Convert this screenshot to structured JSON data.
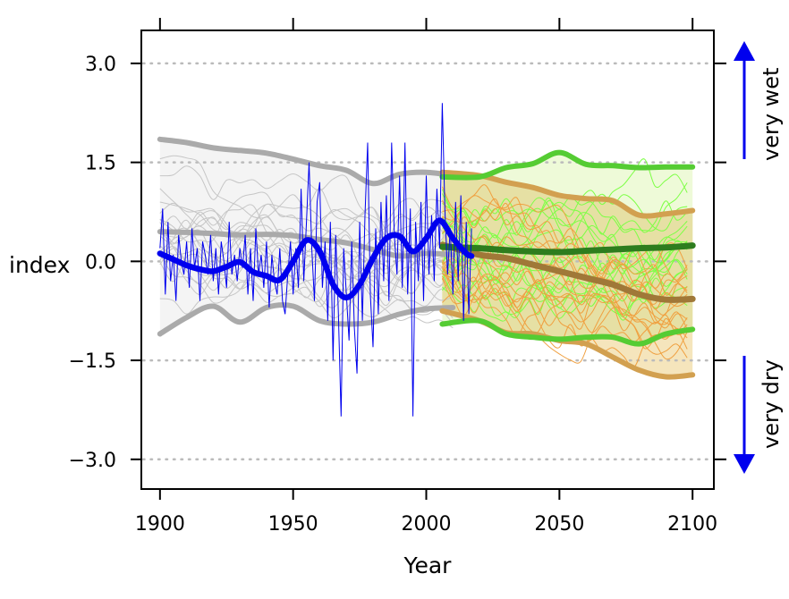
{
  "chart_data": {
    "type": "line",
    "xlabel": "Year",
    "ylabel": "index",
    "xlim": [
      1893,
      2108
    ],
    "ylim": [
      -3.45,
      3.5
    ],
    "xticks": [
      1900,
      1950,
      2000,
      2050,
      2100
    ],
    "yticks": [
      -3.0,
      -1.5,
      0.0,
      1.5,
      3.0
    ],
    "ytick_labels": [
      "−3.0",
      "−1.5",
      "0.0",
      "1.5",
      "3.0"
    ],
    "grid": "horizontal dotted",
    "side_labels": {
      "top": "very wet",
      "bottom": "very dry"
    },
    "colors": {
      "observed": "#0000ee",
      "historical": "#aaaaaa",
      "historical_band": "#f4f4f4",
      "projection_green": "#55cc33",
      "projection_green_dark": "#2e7d1e",
      "projection_orange": "#d2a050",
      "projection_orange_dark": "#a07838",
      "green_band": "#eefad8",
      "orange_band": "#f3e0b0",
      "overlap_band": "#e6e0a4",
      "arrow": "#0000ee"
    },
    "series": [
      {
        "role": "observed-annual",
        "x": [
          1900,
          1901,
          1902,
          1903,
          1904,
          1905,
          1906,
          1907,
          1908,
          1909,
          1910,
          1911,
          1912,
          1913,
          1914,
          1915,
          1916,
          1917,
          1918,
          1919,
          1920,
          1921,
          1922,
          1923,
          1924,
          1925,
          1926,
          1927,
          1928,
          1929,
          1930,
          1931,
          1932,
          1933,
          1934,
          1935,
          1936,
          1937,
          1938,
          1939,
          1940,
          1941,
          1942,
          1943,
          1944,
          1945,
          1946,
          1947,
          1948,
          1949,
          1950,
          1951,
          1952,
          1953,
          1954,
          1955,
          1956,
          1957,
          1958,
          1959,
          1960,
          1961,
          1962,
          1963,
          1964,
          1965,
          1966,
          1967,
          1968,
          1969,
          1970,
          1971,
          1972,
          1973,
          1974,
          1975,
          1976,
          1977,
          1978,
          1979,
          1980,
          1981,
          1982,
          1983,
          1984,
          1985,
          1986,
          1987,
          1988,
          1989,
          1990,
          1991,
          1992,
          1993,
          1994,
          1995,
          1996,
          1997,
          1998,
          1999,
          2000,
          2001,
          2002,
          2003,
          2004,
          2005,
          2006,
          2007,
          2008,
          2009,
          2010,
          2011,
          2012,
          2013,
          2014,
          2015,
          2016,
          2017
        ],
        "y": [
          0.2,
          0.8,
          -0.5,
          0.6,
          -0.3,
          0.1,
          -0.6,
          0.4,
          0.0,
          -0.2,
          0.3,
          -0.4,
          0.5,
          -0.1,
          0.2,
          -0.6,
          0.3,
          0.1,
          -0.2,
          0.4,
          -0.3,
          0.2,
          -0.5,
          0.3,
          0.0,
          -0.4,
          0.6,
          -0.2,
          0.1,
          -0.3,
          0.2,
          -0.1,
          0.4,
          -0.5,
          0.2,
          -0.6,
          0.5,
          -0.2,
          0.1,
          -0.4,
          0.3,
          -0.7,
          0.1,
          -0.3,
          -0.5,
          0.2,
          -0.6,
          -0.8,
          -0.2,
          0.3,
          -0.5,
          0.2,
          -0.4,
          1.1,
          -0.3,
          0.6,
          1.5,
          0.2,
          -0.6,
          0.9,
          1.2,
          -0.4,
          0.3,
          -0.9,
          0.6,
          -1.5,
          0.4,
          -0.8,
          -2.35,
          0.2,
          -0.5,
          -1.2,
          0.3,
          -1.0,
          -1.7,
          0.6,
          -0.9,
          0.7,
          1.8,
          -0.5,
          -1.3,
          0.5,
          -0.8,
          0.9,
          -0.3,
          1.0,
          -0.6,
          1.8,
          0.4,
          -0.2,
          1.3,
          -0.4,
          1.8,
          -0.5,
          0.8,
          -2.35,
          0.6,
          -0.3,
          0.9,
          -0.6,
          1.3,
          -0.2,
          0.7,
          -0.3,
          1.1,
          0.2,
          2.4,
          0.8,
          -0.2,
          0.5,
          -0.5,
          0.9,
          -0.3,
          1.0,
          -0.9,
          0.6,
          -0.8,
          0.5
        ]
      },
      {
        "role": "observed-smoothed",
        "x": [
          1900,
          1905,
          1910,
          1915,
          1920,
          1925,
          1930,
          1935,
          1940,
          1945,
          1950,
          1955,
          1960,
          1965,
          1970,
          1975,
          1980,
          1985,
          1990,
          1995,
          2000,
          2005,
          2010,
          2015,
          2017
        ],
        "y": [
          0.12,
          0.03,
          -0.06,
          -0.12,
          -0.15,
          -0.08,
          -0.01,
          -0.16,
          -0.22,
          -0.28,
          0.0,
          0.32,
          0.15,
          -0.35,
          -0.55,
          -0.35,
          0.05,
          0.35,
          0.38,
          0.15,
          0.35,
          0.62,
          0.35,
          0.12,
          0.08
        ]
      },
      {
        "role": "historical-upper",
        "x": [
          1900,
          1910,
          1920,
          1930,
          1940,
          1950,
          1960,
          1970,
          1980,
          1990,
          2000,
          2010
        ],
        "y": [
          1.85,
          1.8,
          1.72,
          1.68,
          1.64,
          1.55,
          1.45,
          1.38,
          1.18,
          1.32,
          1.35,
          1.3
        ]
      },
      {
        "role": "historical-median",
        "x": [
          1900,
          1910,
          1920,
          1930,
          1940,
          1950,
          1960,
          1970,
          1980,
          1990,
          2000,
          2010
        ],
        "y": [
          0.45,
          0.44,
          0.42,
          0.4,
          0.41,
          0.39,
          0.33,
          0.28,
          0.18,
          0.08,
          0.12,
          0.1
        ]
      },
      {
        "role": "historical-lower",
        "x": [
          1900,
          1910,
          1920,
          1930,
          1940,
          1950,
          1960,
          1970,
          1980,
          1990,
          2000,
          2010
        ],
        "y": [
          -1.1,
          -0.85,
          -0.68,
          -0.92,
          -0.7,
          -0.68,
          -0.9,
          -0.95,
          -0.92,
          -0.8,
          -0.72,
          -0.7
        ]
      },
      {
        "role": "green-upper",
        "x": [
          2006,
          2020,
          2030,
          2040,
          2050,
          2060,
          2070,
          2080,
          2090,
          2100
        ],
        "y": [
          1.28,
          1.28,
          1.42,
          1.48,
          1.65,
          1.47,
          1.45,
          1.42,
          1.43,
          1.43
        ]
      },
      {
        "role": "green-median",
        "x": [
          2006,
          2020,
          2030,
          2040,
          2050,
          2060,
          2070,
          2080,
          2090,
          2100
        ],
        "y": [
          0.22,
          0.2,
          0.17,
          0.15,
          0.14,
          0.16,
          0.18,
          0.2,
          0.21,
          0.24
        ]
      },
      {
        "role": "green-lower",
        "x": [
          2006,
          2020,
          2030,
          2040,
          2050,
          2060,
          2070,
          2080,
          2090,
          2100
        ],
        "y": [
          -0.95,
          -0.9,
          -1.1,
          -1.15,
          -1.18,
          -1.15,
          -1.15,
          -1.25,
          -1.1,
          -1.03
        ]
      },
      {
        "role": "orange-upper",
        "x": [
          2006,
          2020,
          2030,
          2040,
          2050,
          2060,
          2070,
          2080,
          2090,
          2100
        ],
        "y": [
          1.35,
          1.3,
          1.2,
          1.12,
          1.0,
          0.95,
          0.92,
          0.7,
          0.72,
          0.77
        ]
      },
      {
        "role": "orange-median",
        "x": [
          2006,
          2020,
          2030,
          2040,
          2050,
          2060,
          2070,
          2080,
          2090,
          2100
        ],
        "y": [
          0.25,
          0.1,
          0.05,
          -0.05,
          -0.15,
          -0.25,
          -0.35,
          -0.5,
          -0.58,
          -0.57
        ]
      },
      {
        "role": "orange-lower",
        "x": [
          2006,
          2020,
          2030,
          2040,
          2050,
          2060,
          2070,
          2080,
          2090,
          2100
        ],
        "y": [
          -0.75,
          -0.9,
          -1.08,
          -1.1,
          -1.2,
          -1.25,
          -1.45,
          -1.65,
          -1.75,
          -1.72
        ]
      }
    ]
  }
}
